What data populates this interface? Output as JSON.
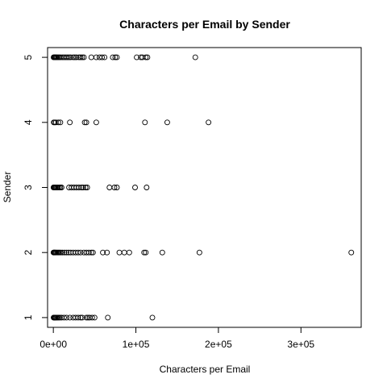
{
  "chart_data": {
    "type": "scatter",
    "title": "Characters per Email by Sender",
    "xlabel": "Characters per Email",
    "ylabel": "Sender",
    "xlim": [
      -7000,
      373000
    ],
    "ylim": [
      0.85,
      5.15
    ],
    "x_ticks": [
      {
        "value": 0,
        "label": "0e+00"
      },
      {
        "value": 100000,
        "label": "1e+05"
      },
      {
        "value": 200000,
        "label": "2e+05"
      },
      {
        "value": 300000,
        "label": "3e+05"
      }
    ],
    "y_ticks": [
      {
        "value": 1,
        "label": "1"
      },
      {
        "value": 2,
        "label": "2"
      },
      {
        "value": 3,
        "label": "3"
      },
      {
        "value": 4,
        "label": "4"
      },
      {
        "value": 5,
        "label": "5"
      }
    ],
    "grid": false,
    "legend": "none",
    "series": [
      {
        "points": [
          [
            300,
            1
          ],
          [
            800,
            1
          ],
          [
            1500,
            1
          ],
          [
            2200,
            1
          ],
          [
            3000,
            1
          ],
          [
            4000,
            1
          ],
          [
            5200,
            1
          ],
          [
            6500,
            1
          ],
          [
            8000,
            1
          ],
          [
            10000,
            1
          ],
          [
            13000,
            1
          ],
          [
            16000,
            1
          ],
          [
            20000,
            1
          ],
          [
            24000,
            1
          ],
          [
            27000,
            1
          ],
          [
            30000,
            1
          ],
          [
            33000,
            1
          ],
          [
            35000,
            1
          ],
          [
            40000,
            1
          ],
          [
            42000,
            1
          ],
          [
            44000,
            1
          ],
          [
            47000,
            1
          ],
          [
            50000,
            1
          ],
          [
            66000,
            1
          ],
          [
            120000,
            1
          ],
          [
            200,
            2
          ],
          [
            700,
            2
          ],
          [
            1300,
            2
          ],
          [
            2000,
            2
          ],
          [
            2800,
            2
          ],
          [
            3800,
            2
          ],
          [
            5000,
            2
          ],
          [
            6300,
            2
          ],
          [
            7500,
            2
          ],
          [
            9000,
            2
          ],
          [
            11000,
            2
          ],
          [
            13500,
            2
          ],
          [
            16000,
            2
          ],
          [
            18500,
            2
          ],
          [
            21000,
            2
          ],
          [
            24000,
            2
          ],
          [
            27000,
            2
          ],
          [
            30000,
            2
          ],
          [
            33000,
            2
          ],
          [
            37000,
            2
          ],
          [
            40000,
            2
          ],
          [
            43000,
            2
          ],
          [
            46000,
            2
          ],
          [
            48000,
            2
          ],
          [
            60000,
            2
          ],
          [
            65000,
            2
          ],
          [
            80000,
            2
          ],
          [
            86000,
            2
          ],
          [
            92000,
            2
          ],
          [
            110000,
            2
          ],
          [
            112000,
            2
          ],
          [
            132000,
            2
          ],
          [
            177000,
            2
          ],
          [
            361000,
            2
          ],
          [
            200,
            3
          ],
          [
            800,
            3
          ],
          [
            1500,
            3
          ],
          [
            2300,
            3
          ],
          [
            3200,
            3
          ],
          [
            4300,
            3
          ],
          [
            5500,
            3
          ],
          [
            7000,
            3
          ],
          [
            8500,
            3
          ],
          [
            10000,
            3
          ],
          [
            19000,
            3
          ],
          [
            22000,
            3
          ],
          [
            25000,
            3
          ],
          [
            28000,
            3
          ],
          [
            31000,
            3
          ],
          [
            34000,
            3
          ],
          [
            36000,
            3
          ],
          [
            39000,
            3
          ],
          [
            41000,
            3
          ],
          [
            68000,
            3
          ],
          [
            74000,
            3
          ],
          [
            77000,
            3
          ],
          [
            99000,
            3
          ],
          [
            113000,
            3
          ],
          [
            500,
            4
          ],
          [
            1500,
            4
          ],
          [
            3000,
            4
          ],
          [
            6000,
            4
          ],
          [
            8500,
            4
          ],
          [
            20000,
            4
          ],
          [
            38000,
            4
          ],
          [
            40000,
            4
          ],
          [
            52000,
            4
          ],
          [
            111000,
            4
          ],
          [
            138000,
            4
          ],
          [
            188000,
            4
          ],
          [
            300,
            5
          ],
          [
            1000,
            5
          ],
          [
            1800,
            5
          ],
          [
            2600,
            5
          ],
          [
            3500,
            5
          ],
          [
            4500,
            5
          ],
          [
            5800,
            5
          ],
          [
            7200,
            5
          ],
          [
            8800,
            5
          ],
          [
            11000,
            5
          ],
          [
            13000,
            5
          ],
          [
            15000,
            5
          ],
          [
            17000,
            5
          ],
          [
            19000,
            5
          ],
          [
            21000,
            5
          ],
          [
            24000,
            5
          ],
          [
            26000,
            5
          ],
          [
            28000,
            5
          ],
          [
            31000,
            5
          ],
          [
            33000,
            5
          ],
          [
            35000,
            5
          ],
          [
            37000,
            5
          ],
          [
            46000,
            5
          ],
          [
            52000,
            5
          ],
          [
            56000,
            5
          ],
          [
            59000,
            5
          ],
          [
            62000,
            5
          ],
          [
            72000,
            5
          ],
          [
            75000,
            5
          ],
          [
            77000,
            5
          ],
          [
            101000,
            5
          ],
          [
            106000,
            5
          ],
          [
            108000,
            5
          ],
          [
            112000,
            5
          ],
          [
            114000,
            5
          ],
          [
            172000,
            5
          ]
        ]
      }
    ]
  }
}
